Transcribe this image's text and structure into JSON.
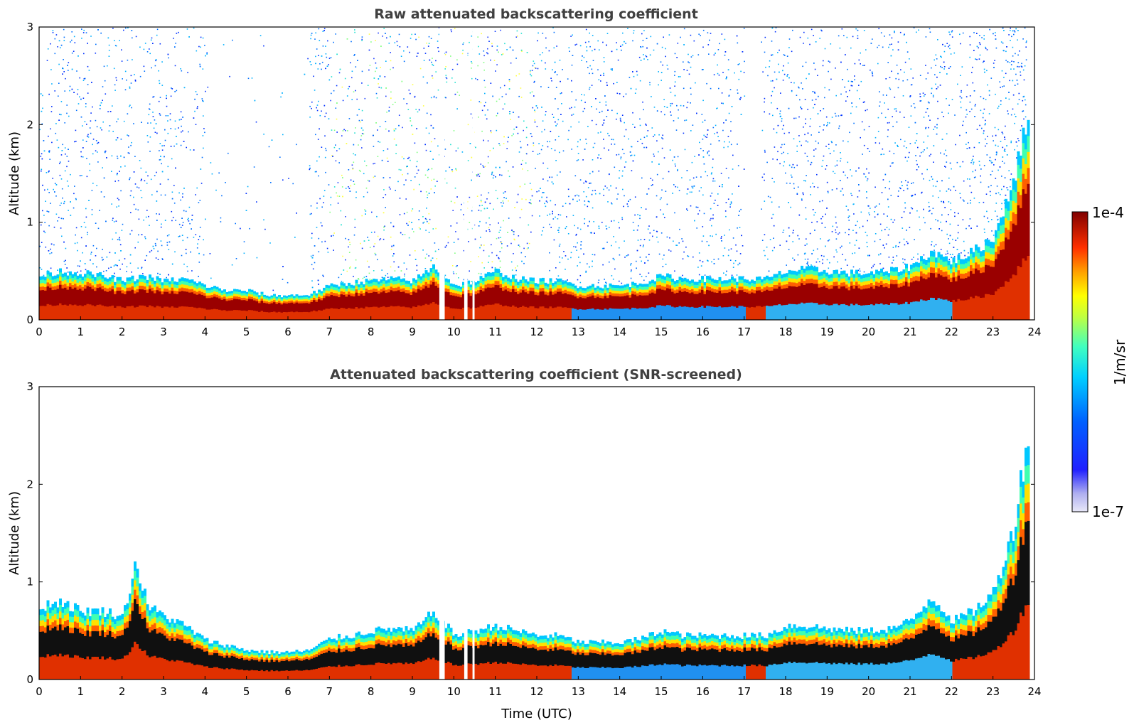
{
  "chart_data": [
    {
      "type": "heatmap",
      "title": "Raw attenuated backscattering coefficient",
      "xlabel": "",
      "ylabel": "Altitude (km)",
      "xlim": [
        0,
        24
      ],
      "ylim": [
        0,
        3
      ],
      "xticks": [
        "0",
        "1",
        "2",
        "3",
        "4",
        "5",
        "6",
        "7",
        "8",
        "9",
        "10",
        "11",
        "12",
        "13",
        "14",
        "15",
        "16",
        "17",
        "18",
        "19",
        "20",
        "21",
        "22",
        "23",
        "24"
      ],
      "yticks": [
        "0",
        "1",
        "2",
        "3"
      ],
      "layer_top_km": [
        [
          0,
          0.45
        ],
        [
          0.5,
          0.5
        ],
        [
          1,
          0.48
        ],
        [
          1.5,
          0.45
        ],
        [
          2,
          0.4
        ],
        [
          2.5,
          0.45
        ],
        [
          3,
          0.4
        ],
        [
          3.5,
          0.42
        ],
        [
          4,
          0.35
        ],
        [
          4.5,
          0.3
        ],
        [
          5,
          0.3
        ],
        [
          5.5,
          0.25
        ],
        [
          6,
          0.25
        ],
        [
          6.5,
          0.26
        ],
        [
          7,
          0.35
        ],
        [
          7.5,
          0.38
        ],
        [
          8,
          0.4
        ],
        [
          8.5,
          0.42
        ],
        [
          9,
          0.4
        ],
        [
          9.5,
          0.55
        ],
        [
          10,
          0.35
        ],
        [
          10.5,
          0.4
        ],
        [
          11,
          0.5
        ],
        [
          11.5,
          0.42
        ],
        [
          12,
          0.4
        ],
        [
          12.5,
          0.4
        ],
        [
          13,
          0.35
        ],
        [
          13.5,
          0.35
        ],
        [
          14,
          0.35
        ],
        [
          14.5,
          0.38
        ],
        [
          15,
          0.45
        ],
        [
          15.5,
          0.42
        ],
        [
          16,
          0.42
        ],
        [
          16.5,
          0.42
        ],
        [
          17,
          0.42
        ],
        [
          17.5,
          0.42
        ],
        [
          18,
          0.5
        ],
        [
          18.5,
          0.52
        ],
        [
          19,
          0.5
        ],
        [
          19.5,
          0.48
        ],
        [
          20,
          0.48
        ],
        [
          20.5,
          0.5
        ],
        [
          21,
          0.55
        ],
        [
          21.5,
          0.7
        ],
        [
          22,
          0.6
        ],
        [
          22.5,
          0.7
        ],
        [
          23,
          0.85
        ],
        [
          23.5,
          1.5
        ],
        [
          23.8,
          2.0
        ]
      ],
      "noise": "dense"
    },
    {
      "type": "heatmap",
      "title": "Attenuated backscattering coefficient (SNR-screened)",
      "xlabel": "Time (UTC)",
      "ylabel": "Altitude (km)",
      "xlim": [
        0,
        24
      ],
      "ylim": [
        0,
        3
      ],
      "xticks": [
        "0",
        "1",
        "2",
        "3",
        "4",
        "5",
        "6",
        "7",
        "8",
        "9",
        "10",
        "11",
        "12",
        "13",
        "14",
        "15",
        "16",
        "17",
        "18",
        "19",
        "20",
        "21",
        "22",
        "23",
        "24"
      ],
      "yticks": [
        "0",
        "1",
        "2",
        "3"
      ],
      "layer_top_km": [
        [
          0,
          0.75
        ],
        [
          0.5,
          0.8
        ],
        [
          1,
          0.7
        ],
        [
          1.5,
          0.7
        ],
        [
          2,
          0.65
        ],
        [
          2.3,
          1.2
        ],
        [
          2.6,
          0.75
        ],
        [
          3,
          0.65
        ],
        [
          3.5,
          0.55
        ],
        [
          4,
          0.4
        ],
        [
          4.5,
          0.35
        ],
        [
          5,
          0.3
        ],
        [
          5.5,
          0.28
        ],
        [
          6,
          0.28
        ],
        [
          6.5,
          0.3
        ],
        [
          7,
          0.42
        ],
        [
          7.5,
          0.45
        ],
        [
          8,
          0.5
        ],
        [
          8.5,
          0.52
        ],
        [
          9,
          0.5
        ],
        [
          9.5,
          0.7
        ],
        [
          10,
          0.45
        ],
        [
          10.5,
          0.5
        ],
        [
          11,
          0.55
        ],
        [
          11.5,
          0.5
        ],
        [
          12,
          0.45
        ],
        [
          12.5,
          0.45
        ],
        [
          13,
          0.38
        ],
        [
          13.5,
          0.38
        ],
        [
          14,
          0.38
        ],
        [
          14.5,
          0.42
        ],
        [
          15,
          0.5
        ],
        [
          15.5,
          0.45
        ],
        [
          16,
          0.45
        ],
        [
          16.5,
          0.45
        ],
        [
          17,
          0.45
        ],
        [
          17.5,
          0.45
        ],
        [
          18,
          0.55
        ],
        [
          18.5,
          0.55
        ],
        [
          19,
          0.52
        ],
        [
          19.5,
          0.5
        ],
        [
          20,
          0.5
        ],
        [
          20.5,
          0.52
        ],
        [
          21,
          0.6
        ],
        [
          21.5,
          0.85
        ],
        [
          22,
          0.6
        ],
        [
          22.5,
          0.7
        ],
        [
          23,
          0.9
        ],
        [
          23.5,
          1.6
        ],
        [
          23.8,
          2.5
        ]
      ],
      "noise": "none"
    }
  ],
  "colorbar": {
    "label": "1/m/sr",
    "max_label": "1e-4",
    "min_label": "1e-7",
    "colors": [
      "#e8e8f8",
      "#c8c8f0",
      "#a0a0f0",
      "#6060f0",
      "#0000ff",
      "#0050ff",
      "#00a0ff",
      "#00e0f0",
      "#40ffc0",
      "#a0ff60",
      "#ffff00",
      "#ffc000",
      "#ff7000",
      "#ff2000",
      "#d00000",
      "#800000"
    ]
  }
}
